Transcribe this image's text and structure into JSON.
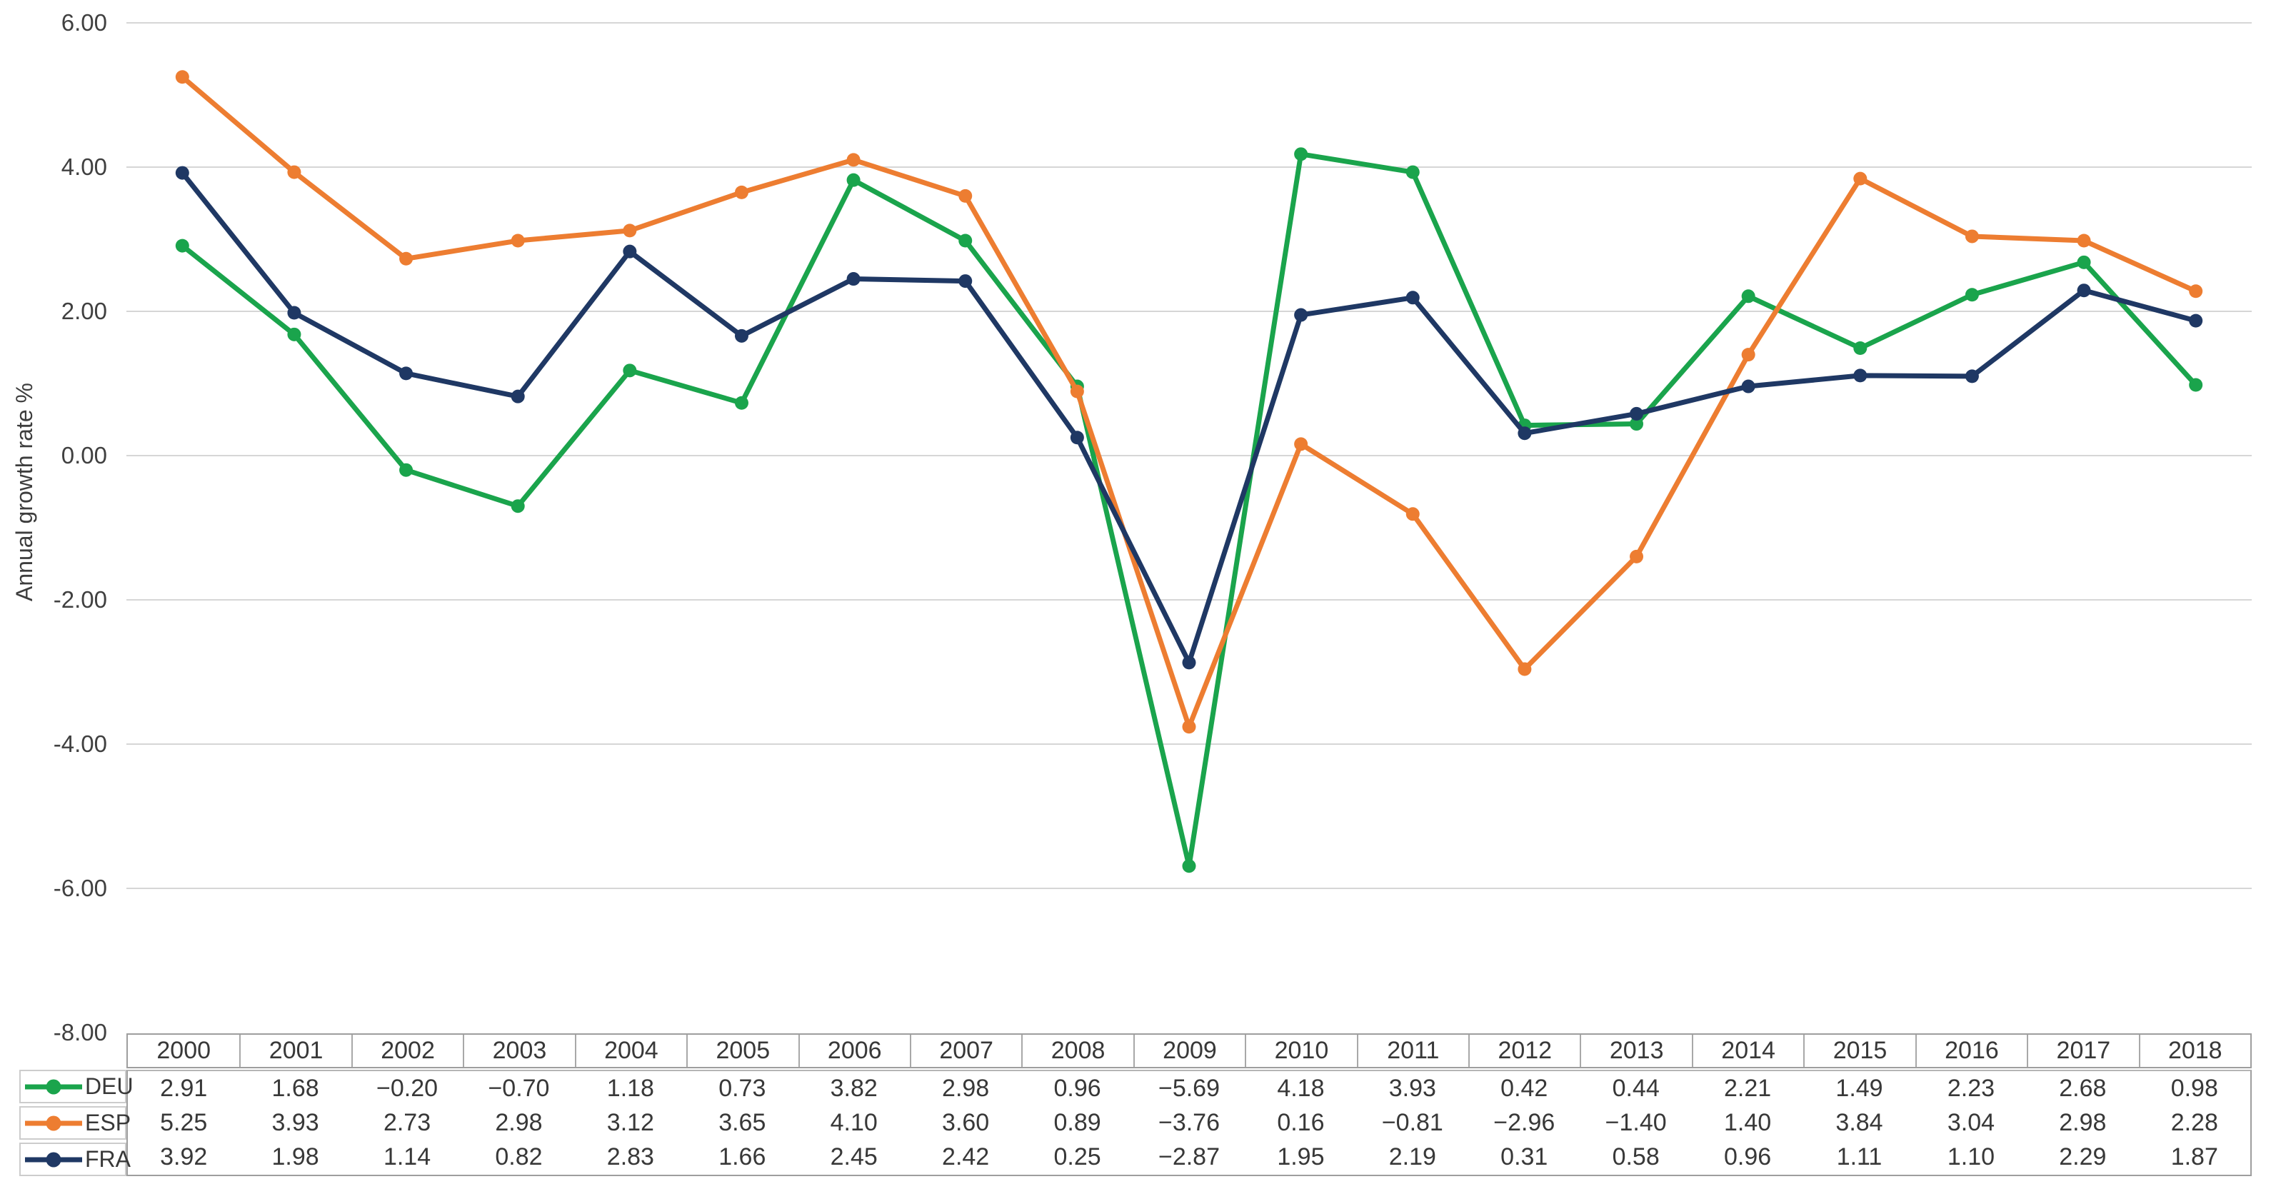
{
  "chart_data": {
    "type": "line",
    "title": "",
    "xlabel": "",
    "ylabel": "Annual growth rate %",
    "categories": [
      "2000",
      "2001",
      "2002",
      "2003",
      "2004",
      "2005",
      "2006",
      "2007",
      "2008",
      "2009",
      "2010",
      "2011",
      "2012",
      "2013",
      "2014",
      "2015",
      "2016",
      "2017",
      "2018"
    ],
    "series": [
      {
        "name": "DEU",
        "color": "#1aa44c",
        "values": [
          2.91,
          1.68,
          -0.2,
          -0.7,
          1.18,
          0.73,
          3.82,
          2.98,
          0.96,
          -5.69,
          4.18,
          3.93,
          0.42,
          0.44,
          2.21,
          1.49,
          2.23,
          2.68,
          0.98
        ]
      },
      {
        "name": "ESP",
        "color": "#ed7d31",
        "values": [
          5.25,
          3.93,
          2.73,
          2.98,
          3.12,
          3.65,
          4.1,
          3.6,
          0.89,
          -3.76,
          0.16,
          -0.81,
          -2.96,
          -1.4,
          1.4,
          3.84,
          3.04,
          2.98,
          2.28
        ]
      },
      {
        "name": "FRA",
        "color": "#1f3864",
        "values": [
          3.92,
          1.98,
          1.14,
          0.82,
          2.83,
          1.66,
          2.45,
          2.42,
          0.25,
          -2.87,
          1.95,
          2.19,
          0.31,
          0.58,
          0.96,
          1.11,
          1.1,
          2.29,
          1.87
        ]
      }
    ],
    "ylim": [
      -8,
      6
    ],
    "yticks": [
      6,
      4,
      2,
      0,
      -2,
      -4,
      -6,
      -8
    ],
    "ytick_labels": [
      "6.00",
      "4.00",
      "2.00",
      "0.00",
      "-2.00",
      "-4.00",
      "-6.00",
      "-8.00"
    ],
    "grid": true,
    "gridline_color": "#d6d6d6",
    "legend_position": "data-table-left",
    "data_table": true,
    "marker": "circle"
  }
}
